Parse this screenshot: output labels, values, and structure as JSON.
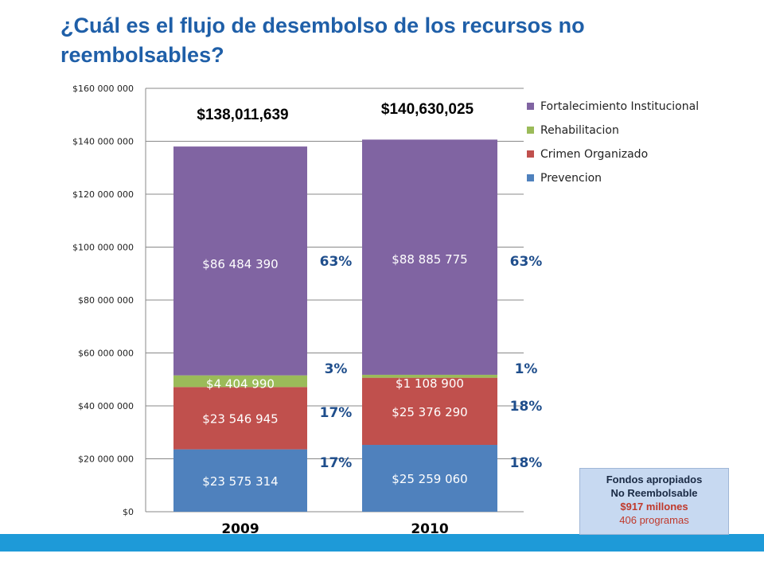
{
  "page": {
    "title": "¿Cuál es el flujo de desembolso de los recursos no reembolsables?"
  },
  "colors": {
    "title": "#1f5fa8",
    "footer_bar": "#1e9ad8",
    "box_bg": "#c7d9f1"
  },
  "fund_box": {
    "line1": "Fondos apropiados",
    "line2": "No Reembolsable",
    "amount": "$917 millones",
    "programs": "406 programas"
  },
  "chart_data": {
    "type": "bar",
    "stacked": true,
    "categories": [
      "2009",
      "2010"
    ],
    "series": [
      {
        "name": "Prevencion",
        "color": "#4f81bd",
        "values": [
          23575314,
          25259060
        ],
        "labels": [
          "$23 575 314",
          "$25 259 060"
        ],
        "pct": [
          "17%",
          "18%"
        ]
      },
      {
        "name": "Crimen Organizado",
        "color": "#c0504d",
        "values": [
          23546945,
          25376290
        ],
        "labels": [
          "$23 546 945",
          "$25 376 290"
        ],
        "pct": [
          "17%",
          "18%"
        ]
      },
      {
        "name": "Rehabilitacion",
        "color": "#9bbb59",
        "values": [
          4404990,
          1108900
        ],
        "labels": [
          "$4 404 990",
          "$1 108 900"
        ],
        "pct": [
          "3%",
          "1%"
        ]
      },
      {
        "name": "Fortalecimiento Institucional",
        "color": "#8064a2",
        "values": [
          86484390,
          88885775
        ],
        "labels": [
          "$86 484 390",
          "$88 885 775"
        ],
        "pct": [
          "63%",
          "63%"
        ]
      }
    ],
    "totals": [
      "$138,011,639",
      "$140,630,025"
    ],
    "ylim": [
      0,
      160000000
    ],
    "yticks": [
      0,
      20000000,
      40000000,
      60000000,
      80000000,
      100000000,
      120000000,
      140000000,
      160000000
    ],
    "ytick_labels": [
      "$0",
      "$20 000 000",
      "$40 000 000",
      "$60 000 000",
      "$80 000 000",
      "$100 000 000",
      "$120 000 000",
      "$140 000 000",
      "$160 000 000"
    ],
    "legend_order": [
      "Fortalecimiento Institucional",
      "Rehabilitacion",
      "Crimen Organizado",
      "Prevencion"
    ],
    "legend_position": "right",
    "grid": true
  }
}
